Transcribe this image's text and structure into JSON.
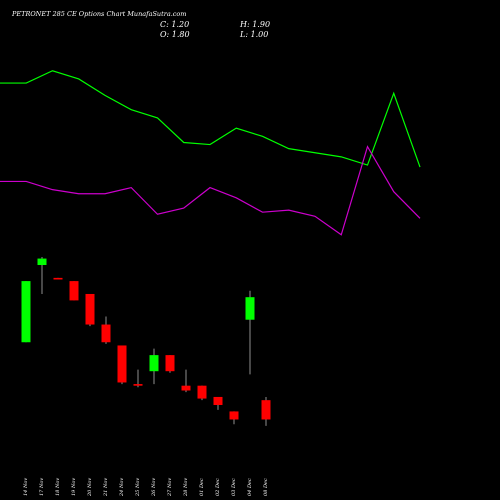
{
  "header": {
    "title": "PETRONET 285 CE Options Chart MunafaSutra.com",
    "close": "C: 1.20",
    "high": "H: 1.90",
    "open": "O: 1.80",
    "low": "L: 1.00"
  },
  "chart_data": [
    {
      "type": "candlestick",
      "categories": [
        "14 Nov",
        "17 Nov",
        "18 Nov",
        "19 Nov",
        "20 Nov",
        "21 Nov",
        "24 Nov",
        "25 Nov",
        "26 Nov",
        "27 Nov",
        "28 Nov",
        "01 Dec",
        "02 Dec",
        "03 Dec",
        "04 Dec",
        "08 Dec"
      ],
      "open": [
        3.6,
        6.0,
        5.6,
        5.5,
        5.1,
        4.15,
        3.5,
        2.3,
        2.7,
        3.2,
        2.25,
        2.25,
        1.9,
        1.45,
        4.3,
        1.8
      ],
      "high": [
        5.5,
        6.25,
        5.6,
        5.5,
        5.1,
        4.4,
        3.5,
        2.75,
        3.4,
        3.2,
        2.75,
        2.25,
        1.9,
        1.45,
        5.2,
        1.9
      ],
      "low": [
        3.6,
        5.1,
        5.55,
        4.9,
        4.1,
        3.55,
        2.3,
        2.2,
        2.3,
        2.65,
        2.05,
        1.8,
        1.5,
        1.05,
        2.6,
        1.0
      ],
      "close": [
        5.5,
        6.2,
        5.55,
        4.9,
        4.15,
        3.6,
        2.35,
        2.25,
        3.2,
        2.7,
        2.1,
        1.85,
        1.65,
        1.2,
        5.0,
        1.2
      ],
      "up_color": "#00ff00",
      "down_color": "#ff0000",
      "ylim": [
        0.5,
        6.6
      ]
    },
    {
      "type": "line",
      "categories": [
        null,
        null,
        null,
        null,
        null,
        null,
        null,
        null,
        null,
        null,
        null,
        null,
        null,
        null,
        null,
        null,
        null
      ],
      "series": [
        {
          "color": "#00ff00",
          "values": [
            79,
            79,
            85,
            81,
            73,
            66,
            62,
            50,
            49,
            57,
            53,
            47,
            45,
            43,
            39,
            74,
            38
          ]
        },
        {
          "color": "#cc00cc",
          "values": [
            31,
            31,
            27,
            25,
            25,
            28,
            15,
            18,
            28,
            23,
            16,
            17,
            14,
            5,
            48,
            26,
            13
          ]
        }
      ],
      "ylim": [
        0,
        100
      ]
    }
  ]
}
